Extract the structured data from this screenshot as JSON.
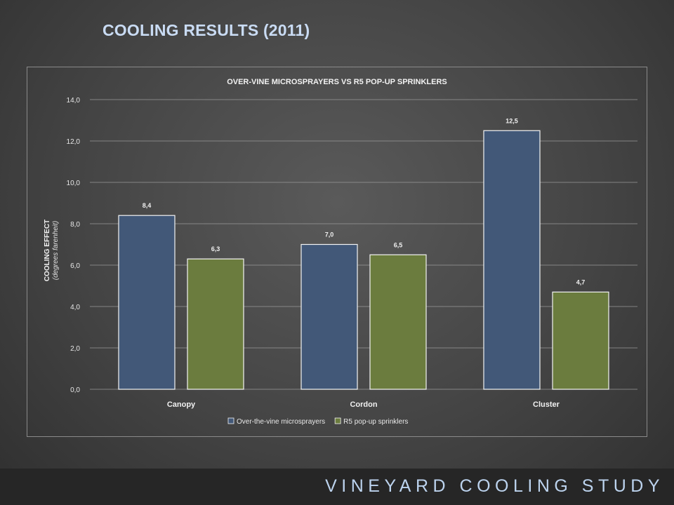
{
  "slide": {
    "title": "COOLING RESULTS (2011)",
    "footer": "VINEYARD COOLING STUDY"
  },
  "colors": {
    "series1": "#425878",
    "series2": "#6b7c3e",
    "title": "#c9dbf3",
    "footer_text": "#bcd3ee"
  },
  "chart_data": {
    "type": "bar",
    "title": "OVER-VINE MICROSPRAYERS VS R5 POP-UP SPRINKLERS",
    "ylabel": "COOLING EFFECT",
    "ylabel_sub": "(degrees farenheit)",
    "xlabel": "",
    "ylim": [
      0,
      14
    ],
    "yticks": [
      "0,0",
      "2,0",
      "4,0",
      "6,0",
      "8,0",
      "10,0",
      "12,0",
      "14,0"
    ],
    "categories": [
      "Canopy",
      "Cordon",
      "Cluster"
    ],
    "series": [
      {
        "name": "Over-the-vine microsprayers",
        "values": [
          8.4,
          7.0,
          12.5
        ],
        "labels": [
          "8,4",
          "7,0",
          "12,5"
        ]
      },
      {
        "name": "R5 pop-up sprinklers",
        "values": [
          6.3,
          6.5,
          4.7
        ],
        "labels": [
          "6,3",
          "6,5",
          "4,7"
        ]
      }
    ],
    "grid": true,
    "legend_position": "bottom"
  }
}
